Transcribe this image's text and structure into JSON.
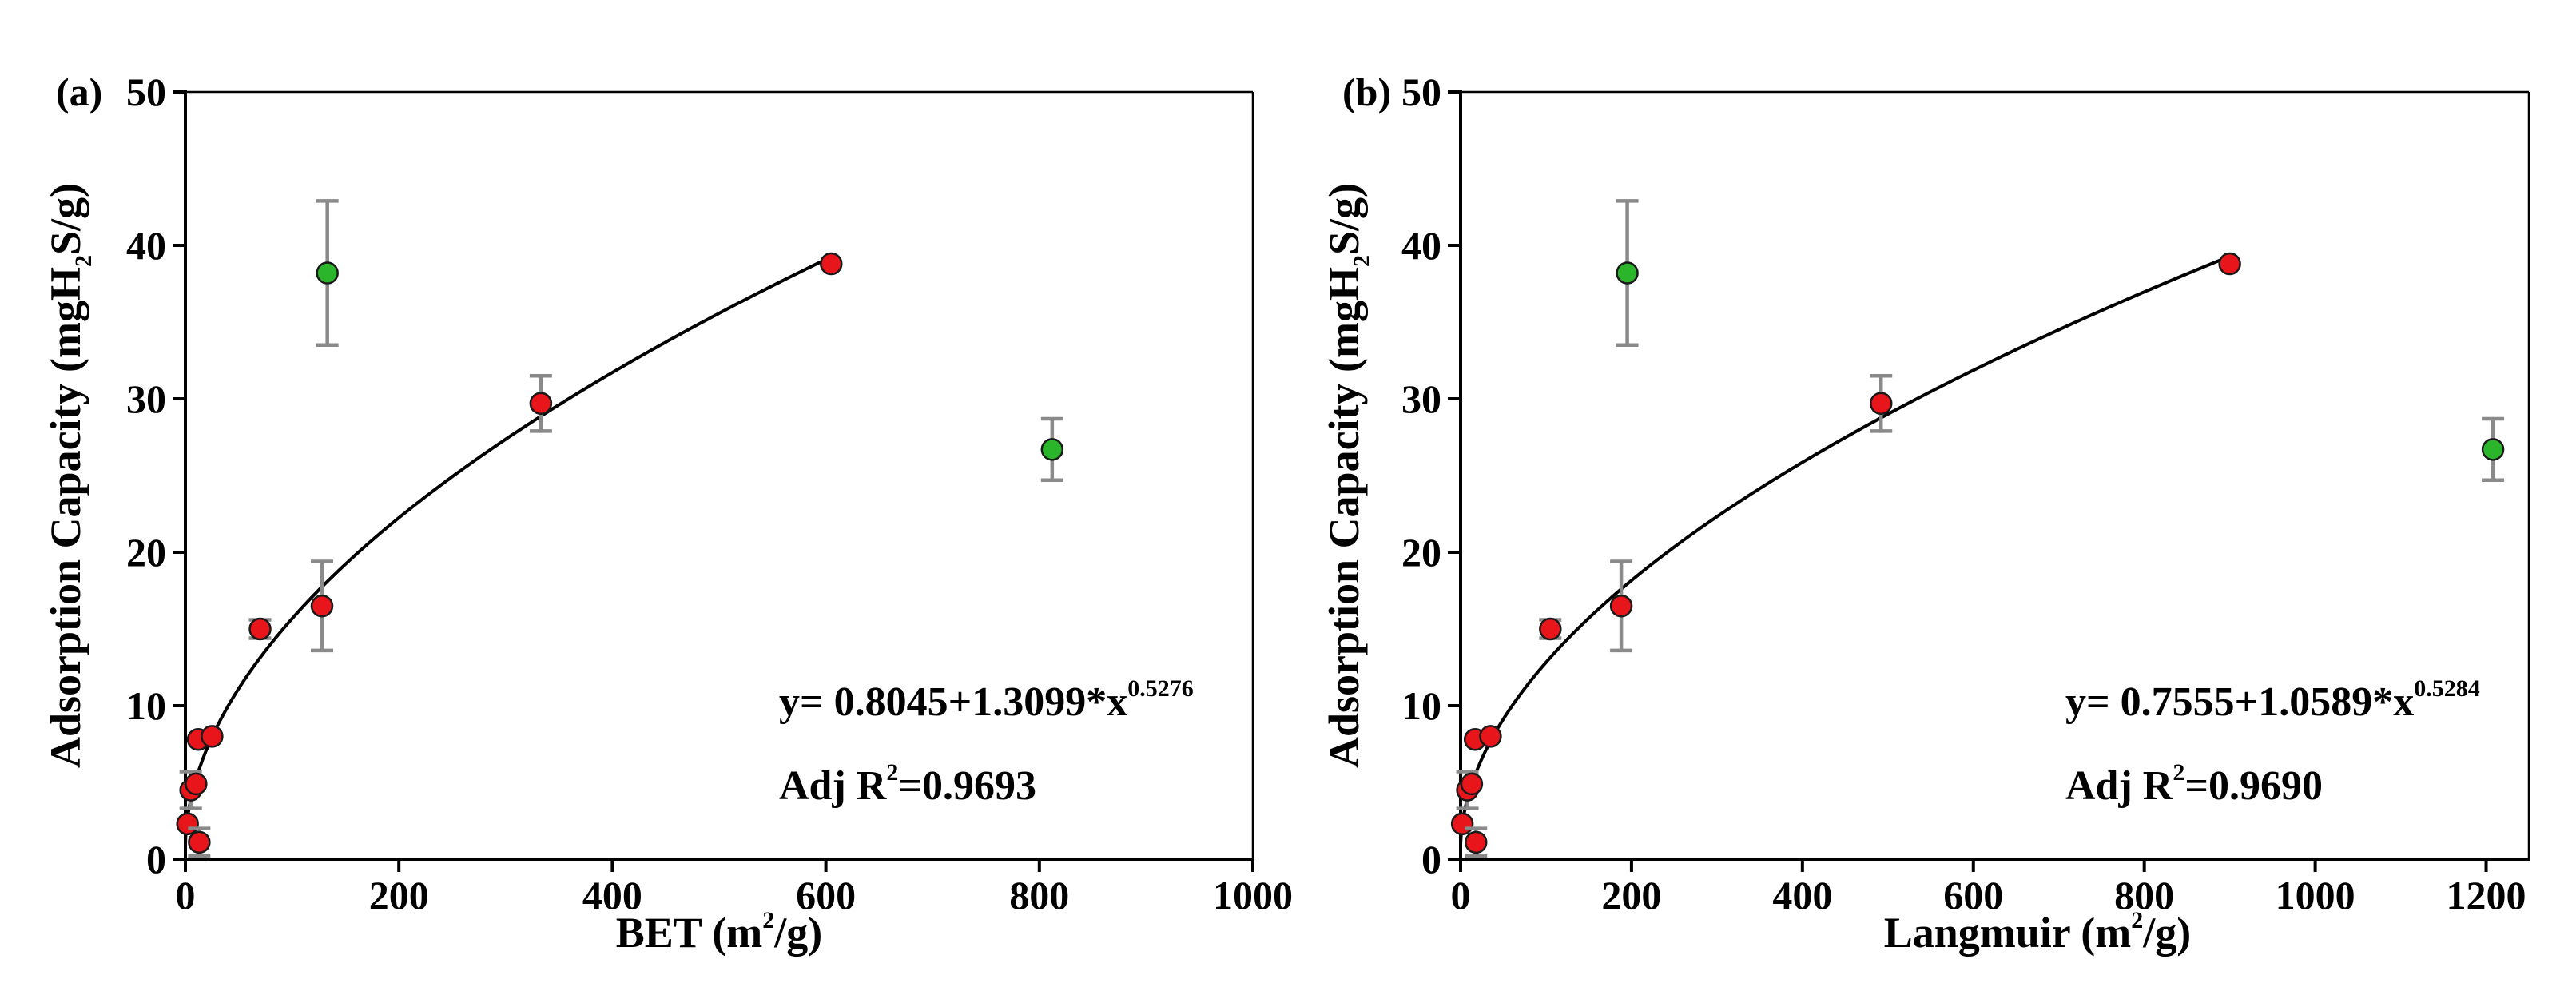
{
  "chart_data": [
    {
      "type": "scatter",
      "panel_label": "(a)",
      "xlabel_main": "BET (m",
      "xlabel_sup": "2",
      "xlabel_end": "/g)",
      "ylabel_main": "Adsorption Capacity (mgH",
      "ylabel_sub": "2",
      "ylabel_end": "S/g)",
      "xlim": [
        0,
        1000
      ],
      "ylim": [
        0,
        50
      ],
      "xticks": [
        0,
        200,
        400,
        600,
        800,
        1000
      ],
      "yticks": [
        0,
        10,
        20,
        30,
        40,
        50
      ],
      "fit": {
        "a": 0.8045,
        "b": 1.3099,
        "c": 0.5276,
        "x_range": [
          0,
          605
        ]
      },
      "equation_main": "y= 0.8045+1.3099*x",
      "equation_sup": "0.5276",
      "r2_prefix": "Adj R",
      "r2_sup": "2",
      "r2_value": "=0.9693",
      "colors": {
        "fitted": "#e8151b",
        "outlier": "#2bb52b",
        "error": "#8a8a8a"
      },
      "series": [
        {
          "name": "fitted",
          "points": [
            {
              "x": 2,
              "y": 2.3,
              "err": 0
            },
            {
              "x": 5,
              "y": 4.5,
              "err": 1.2
            },
            {
              "x": 10,
              "y": 4.9,
              "err": 0
            },
            {
              "x": 12,
              "y": 7.8,
              "err": 0
            },
            {
              "x": 13,
              "y": 1.1,
              "err": 0.9
            },
            {
              "x": 25,
              "y": 8.0,
              "err": 0
            },
            {
              "x": 70,
              "y": 15.0,
              "err": 0.6
            },
            {
              "x": 128,
              "y": 16.5,
              "err": 2.9
            },
            {
              "x": 333,
              "y": 29.7,
              "err": 1.8
            },
            {
              "x": 605,
              "y": 38.8,
              "err": 0
            }
          ]
        },
        {
          "name": "outlier",
          "points": [
            {
              "x": 133,
              "y": 38.2,
              "err": 4.7
            },
            {
              "x": 812,
              "y": 26.7,
              "err": 2.0
            }
          ]
        }
      ]
    },
    {
      "type": "scatter",
      "panel_label": "(b)",
      "xlabel_main": "Langmuir (m",
      "xlabel_sup": "2",
      "xlabel_end": "/g)",
      "ylabel_main": "Adsorption Capacity (mgH",
      "ylabel_sub": "2",
      "ylabel_end": "S/g)",
      "xlim": [
        0,
        1250
      ],
      "ylim": [
        0,
        50
      ],
      "xticks": [
        0,
        200,
        400,
        600,
        800,
        1000,
        1200
      ],
      "yticks": [
        0,
        10,
        20,
        30,
        40,
        50
      ],
      "fit": {
        "a": 0.7555,
        "b": 1.0589,
        "c": 0.5284,
        "x_range": [
          0,
          900
        ]
      },
      "equation_main": "y= 0.7555+1.0589*x",
      "equation_sup": "0.5284",
      "r2_prefix": "Adj R",
      "r2_sup": "2",
      "r2_value": "=0.9690",
      "colors": {
        "fitted": "#e8151b",
        "outlier": "#2bb52b",
        "error": "#8a8a8a"
      },
      "series": [
        {
          "name": "fitted",
          "points": [
            {
              "x": 2,
              "y": 2.3,
              "err": 0
            },
            {
              "x": 8,
              "y": 4.5,
              "err": 1.2
            },
            {
              "x": 13,
              "y": 4.9,
              "err": 0
            },
            {
              "x": 17,
              "y": 7.8,
              "err": 0
            },
            {
              "x": 18,
              "y": 1.1,
              "err": 0.9
            },
            {
              "x": 35,
              "y": 8.0,
              "err": 0
            },
            {
              "x": 105,
              "y": 15.0,
              "err": 0.6
            },
            {
              "x": 188,
              "y": 16.5,
              "err": 2.9
            },
            {
              "x": 492,
              "y": 29.7,
              "err": 1.8
            },
            {
              "x": 900,
              "y": 38.8,
              "err": 0
            }
          ]
        },
        {
          "name": "outlier",
          "points": [
            {
              "x": 195,
              "y": 38.2,
              "err": 4.7
            },
            {
              "x": 1208,
              "y": 26.7,
              "err": 2.0
            }
          ]
        }
      ]
    }
  ]
}
